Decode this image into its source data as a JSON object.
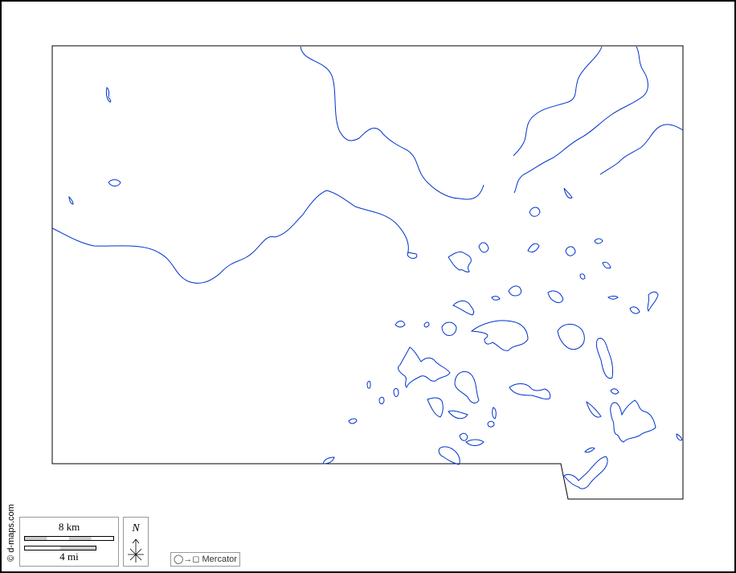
{
  "map": {
    "copyright": "© d-maps.com",
    "scale": {
      "metric_label": "8 km",
      "imperial_label": "4 mi"
    },
    "north_label": "N",
    "projection": {
      "icon": "circle-to-square-icon",
      "label": "Mercator"
    },
    "colors": {
      "water": "#0033cc",
      "boundary": "#000000"
    }
  }
}
